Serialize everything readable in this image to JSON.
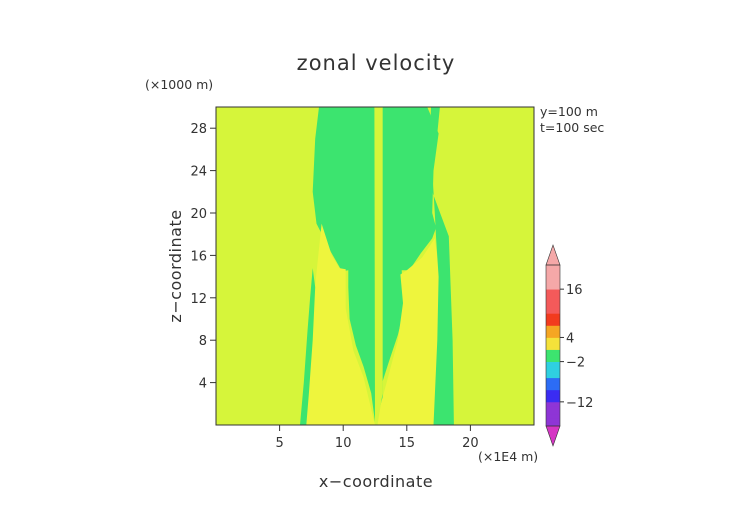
{
  "chart_data": {
    "type": "heatmap",
    "title": "zonal velocity",
    "xlabel": "x−coordinate",
    "ylabel": "z−coordinate",
    "x_unit": "(×1E4 m)",
    "y_unit": "(×1000 m)",
    "annotations": [
      "y=100 m",
      "t=100 sec"
    ],
    "xlim": [
      0,
      25
    ],
    "ylim": [
      0,
      30
    ],
    "x_ticks": [
      5,
      10,
      15,
      20
    ],
    "y_ticks": [
      4,
      8,
      12,
      16,
      20,
      24,
      28
    ],
    "background_color": "#d6f53a",
    "regions": [
      {
        "name": "left green band",
        "color": "#3ce46f",
        "points": [
          [
            8.1,
            30
          ],
          [
            7.8,
            27
          ],
          [
            7.6,
            22
          ],
          [
            7.9,
            19
          ],
          [
            9.0,
            16.4
          ],
          [
            9.9,
            14.5
          ],
          [
            10.4,
            14.6
          ],
          [
            10.4,
            13
          ],
          [
            10.5,
            10
          ],
          [
            11.0,
            7.5
          ],
          [
            11.6,
            5.5
          ],
          [
            12.2,
            3
          ],
          [
            12.5,
            0.3
          ],
          [
            12.45,
            30
          ]
        ]
      },
      {
        "name": "right green band",
        "color": "#3ce46f",
        "points": [
          [
            12.5,
            0.3
          ],
          [
            12.8,
            3
          ],
          [
            13.6,
            6
          ],
          [
            14.3,
            8.5
          ],
          [
            14.8,
            11
          ],
          [
            14.6,
            14.6
          ],
          [
            15.2,
            14.6
          ],
          [
            16.1,
            16.2
          ],
          [
            17.0,
            17.6
          ],
          [
            17.3,
            18.6
          ],
          [
            17.0,
            20
          ],
          [
            17.1,
            24
          ],
          [
            17.5,
            27.5
          ],
          [
            16.6,
            30
          ],
          [
            13.1,
            30
          ],
          [
            13.1,
            0.3
          ]
        ]
      },
      {
        "name": "left inner yellow region",
        "color": "#eef53d",
        "points": [
          [
            6.6,
            0
          ],
          [
            7.2,
            6
          ],
          [
            7.7,
            12
          ],
          [
            8.3,
            19
          ],
          [
            9.1,
            16
          ],
          [
            9.7,
            14.8
          ],
          [
            10.2,
            14.7
          ],
          [
            10.2,
            11
          ],
          [
            10.8,
            7
          ],
          [
            11.6,
            4.5
          ],
          [
            12.5,
            0
          ]
        ]
      },
      {
        "name": "right inner yellow region",
        "color": "#eef53d",
        "points": [
          [
            12.5,
            0
          ],
          [
            13.3,
            3.5
          ],
          [
            14.3,
            8
          ],
          [
            14.7,
            11.5
          ],
          [
            14.5,
            14.2
          ],
          [
            15.0,
            14.6
          ],
          [
            16.2,
            15.8
          ],
          [
            17.2,
            17.6
          ],
          [
            17.6,
            14
          ],
          [
            18.0,
            8
          ],
          [
            18.3,
            0
          ]
        ]
      },
      {
        "name": "right outer green band",
        "color": "#3ce46f",
        "points": [
          [
            17.1,
            0
          ],
          [
            17.4,
            8
          ],
          [
            17.5,
            14
          ],
          [
            17.3,
            17.6
          ],
          [
            17.2,
            20
          ],
          [
            17.0,
            24
          ],
          [
            17.4,
            27.5
          ],
          [
            17.6,
            30
          ],
          [
            16.9,
            30
          ],
          [
            16.8,
            26
          ],
          [
            17.0,
            22
          ],
          [
            18.3,
            17.8
          ],
          [
            18.6,
            8
          ],
          [
            18.7,
            0
          ]
        ]
      },
      {
        "name": "left lower green strip",
        "color": "#3ce46f",
        "points": [
          [
            6.6,
            0
          ],
          [
            6.9,
            4
          ],
          [
            7.2,
            9
          ],
          [
            7.4,
            12
          ],
          [
            7.6,
            14.8
          ],
          [
            7.8,
            13
          ],
          [
            7.6,
            8
          ],
          [
            7.3,
            3
          ],
          [
            7.1,
            0
          ]
        ]
      },
      {
        "name": "center yellow column",
        "color": "#d6f53a",
        "points": [
          [
            12.5,
            0
          ],
          [
            12.5,
            30
          ],
          [
            13.1,
            30
          ],
          [
            13.1,
            3
          ],
          [
            12.7,
            0
          ]
        ]
      }
    ],
    "colorbar": {
      "labels": [
        "16",
        "4",
        "−2",
        "−12"
      ],
      "label_values": [
        16,
        4,
        -2,
        -12
      ],
      "range": [
        -18,
        22
      ],
      "stops": [
        {
          "v": 22,
          "color": "#f5a8a8"
        },
        {
          "v": 16,
          "color": "#f45a5a"
        },
        {
          "v": 10,
          "color": "#f23b1e"
        },
        {
          "v": 7,
          "color": "#f5a623"
        },
        {
          "v": 4,
          "color": "#f5e23a"
        },
        {
          "v": 1,
          "color": "#3ce46f"
        },
        {
          "v": -2,
          "color": "#2fd0e0"
        },
        {
          "v": -6,
          "color": "#2c6cf5"
        },
        {
          "v": -9,
          "color": "#3a2cf2"
        },
        {
          "v": -12,
          "color": "#8e35d6"
        },
        {
          "v": -18,
          "color": "#d535c4"
        }
      ]
    }
  }
}
